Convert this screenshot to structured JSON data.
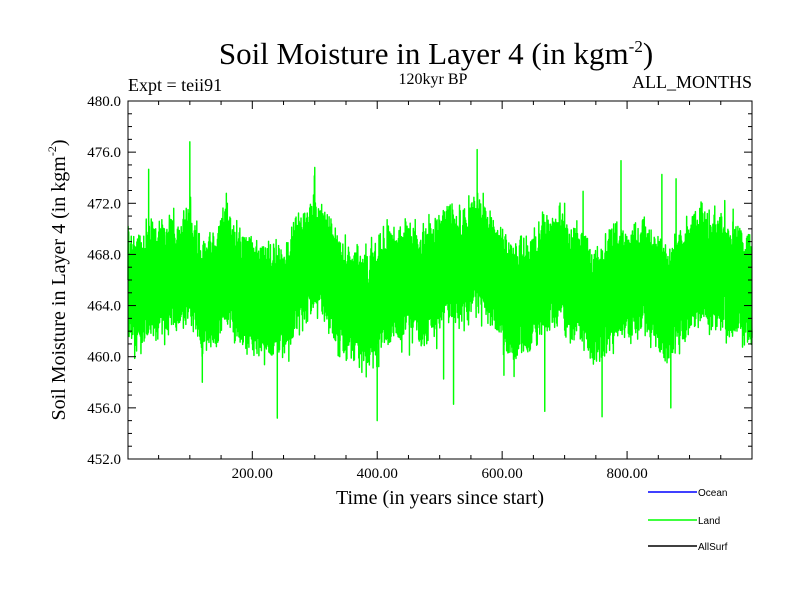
{
  "chart_data": {
    "type": "line",
    "title": "Soil Moisture in Layer 4 (in kgm",
    "title_superscript": "-2",
    "title_suffix": ")",
    "subtitle_left": "Expt = teii91",
    "subtitle_center": "120kyr BP",
    "subtitle_right": "ALL_MONTHS",
    "xlabel": "Time (in years since start)",
    "ylabel": "Soil Moisture in Layer 4 (in kgm",
    "ylabel_superscript": "-2",
    "ylabel_suffix": ")",
    "xlim": [
      1,
      1000
    ],
    "ylim": [
      452,
      480
    ],
    "x_ticks": [
      200,
      400,
      600,
      800
    ],
    "x_tick_labels": [
      "200.00",
      "400.00",
      "600.00",
      "800.00"
    ],
    "y_ticks": [
      452,
      456,
      460,
      464,
      468,
      472,
      476,
      480
    ],
    "y_tick_labels": [
      "452.0",
      "456.0",
      "460.0",
      "464.0",
      "468.0",
      "472.0",
      "476.0",
      "480.0"
    ],
    "grid": false,
    "legend_position": "bottom-right",
    "series": [
      {
        "name": "Ocean",
        "color": "#0000ff",
        "values": []
      },
      {
        "name": "Land",
        "color": "#00ff00",
        "data_description": "monthly time series, approximately 12000 values, oscillating mainly between about 459 and 473",
        "mean": 466,
        "min_observed": 455,
        "max_observed": 476.8,
        "typical_min": 459,
        "typical_max": 473,
        "keypoints": [
          {
            "x": 1,
            "y": 466
          },
          {
            "x": 20,
            "y": 462
          },
          {
            "x": 40,
            "y": 470
          },
          {
            "x": 60,
            "y": 464
          },
          {
            "x": 80,
            "y": 469
          },
          {
            "x": 100,
            "y": 476.8
          },
          {
            "x": 120,
            "y": 458
          },
          {
            "x": 160,
            "y": 472
          },
          {
            "x": 200,
            "y": 461
          },
          {
            "x": 240,
            "y": 455.2
          },
          {
            "x": 280,
            "y": 468
          },
          {
            "x": 300,
            "y": 474.8
          },
          {
            "x": 340,
            "y": 460
          },
          {
            "x": 400,
            "y": 455
          },
          {
            "x": 450,
            "y": 470
          },
          {
            "x": 500,
            "y": 466
          },
          {
            "x": 560,
            "y": 476.2
          },
          {
            "x": 620,
            "y": 460
          },
          {
            "x": 700,
            "y": 472
          },
          {
            "x": 760,
            "y": 455.3
          },
          {
            "x": 820,
            "y": 468
          },
          {
            "x": 870,
            "y": 456
          },
          {
            "x": 920,
            "y": 472
          },
          {
            "x": 1000,
            "y": 462
          }
        ]
      },
      {
        "name": "AllSurf",
        "color": "#000000",
        "values": []
      }
    ]
  }
}
